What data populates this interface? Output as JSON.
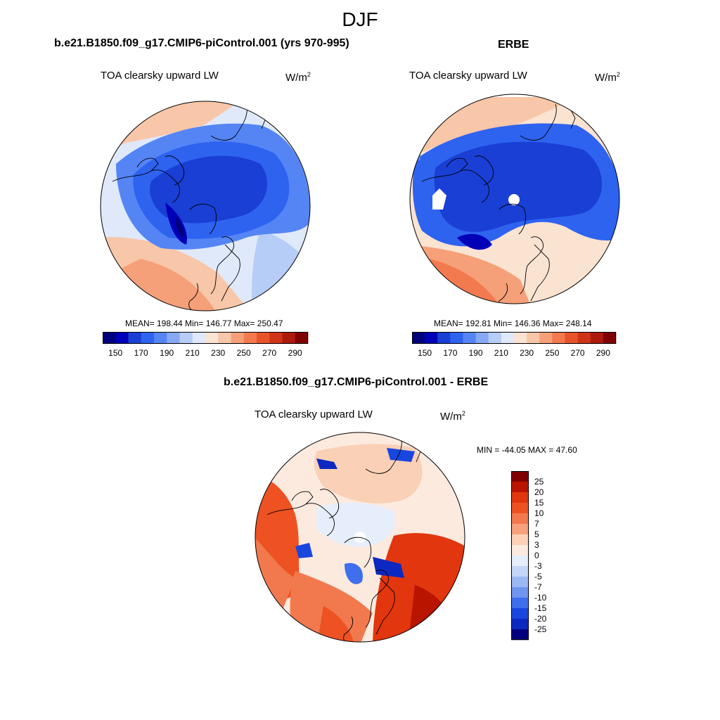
{
  "figure": {
    "season": "DJF",
    "units_base": "W/m",
    "units_exp": "2"
  },
  "panels": [
    {
      "id": "model",
      "title": "b.e21.B1850.f09_g17.CMIP6-piControl.001 (yrs 970-995)",
      "variable": "TOA clearsky upward LW",
      "stats": "MEAN= 198.44  Min= 146.77  Max= 250.47"
    },
    {
      "id": "obs",
      "title": "ERBE",
      "variable": "TOA clearsky upward LW",
      "stats": "MEAN= 192.81  Min= 146.36  Max= 248.14"
    },
    {
      "id": "diff",
      "title": "b.e21.B1850.f09_g17.CMIP6-piControl.001 - ERBE",
      "variable": "TOA clearsky upward LW",
      "stats": "MIN = -44.05 MAX =  47.60"
    }
  ],
  "colorbars": {
    "abs": {
      "colors": [
        "#00007f",
        "#0000b8",
        "#1a3fd4",
        "#2e63f0",
        "#5585f5",
        "#86a8f5",
        "#b5cdf7",
        "#dfe9fa",
        "#fbe3d2",
        "#f8c6a8",
        "#f5a078",
        "#f27a4e",
        "#e8542a",
        "#cf3418",
        "#ad1a0c",
        "#7f0000"
      ],
      "labels": [
        "150",
        "170",
        "190",
        "210",
        "230",
        "250",
        "270",
        "290"
      ]
    },
    "diff": {
      "colors": [
        "#800000",
        "#b81400",
        "#e2360e",
        "#ee5222",
        "#f2794e",
        "#f6a07c",
        "#fad0b6",
        "#fdeadf",
        "#e6eefb",
        "#c4d6f8",
        "#9bb8f4",
        "#6f95f0",
        "#3f6fec",
        "#1a46e0",
        "#0d28c0",
        "#00007f"
      ],
      "labels": [
        "25",
        "20",
        "15",
        "10",
        "7",
        "5",
        "3",
        "0",
        "-3",
        "-5",
        "-7",
        "-10",
        "-15",
        "-20",
        "-25"
      ]
    }
  }
}
